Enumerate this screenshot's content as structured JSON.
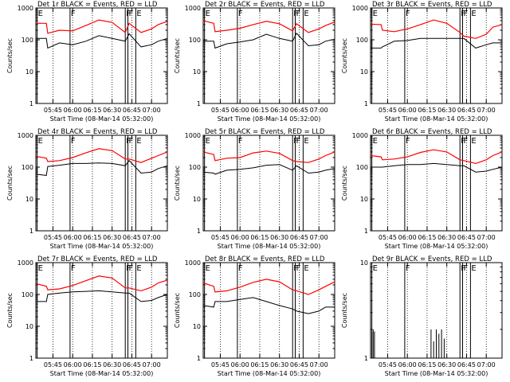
{
  "figure": {
    "xlabel": "Start Time (08-Mar-14 05:32:00)",
    "ylabel": "Counts/sec",
    "x_ticks": [
      "05:45",
      "06:00",
      "06:15",
      "06:30",
      "06:45",
      "07:00"
    ],
    "y_ticks": [
      "1000",
      "100",
      "10",
      "1"
    ],
    "markers": [
      {
        "label": "E",
        "x": "05:33"
      },
      {
        "label": "F",
        "x": "05:58"
      },
      {
        "label": "F",
        "x": "06:40"
      },
      {
        "label": "F",
        "x": "06:42"
      },
      {
        "label": "E",
        "x": "06:48"
      }
    ],
    "colors": {
      "events": "#000000",
      "lld": "#ff0000"
    }
  },
  "chart_data": [
    {
      "type": "line",
      "title": "Det 1r BLACK = Events, RED = LLD",
      "xlabel": "Start Time (08-Mar-14 05:32:00)",
      "ylabel": "Counts/sec",
      "y_scale": "log",
      "ylim": [
        1,
        1000
      ],
      "xlim": [
        "05:32",
        "07:12"
      ],
      "x": [
        "05:32",
        "05:40",
        "05:41",
        "05:50",
        "06:00",
        "06:10",
        "06:20",
        "06:30",
        "06:40",
        "06:43",
        "06:52",
        "07:00",
        "07:05",
        "07:12"
      ],
      "series": [
        {
          "name": "Events",
          "values": [
            110,
            110,
            55,
            80,
            70,
            90,
            135,
            110,
            90,
            155,
            60,
            70,
            90,
            110
          ]
        },
        {
          "name": "LLD",
          "values": [
            330,
            330,
            160,
            200,
            190,
            280,
            420,
            350,
            170,
            330,
            170,
            220,
            300,
            380
          ]
        }
      ]
    },
    {
      "type": "line",
      "title": "Det 2r BLACK = Events, RED = LLD",
      "xlabel": "Start Time (08-Mar-14 05:32:00)",
      "ylabel": "Counts/sec",
      "y_scale": "log",
      "ylim": [
        1,
        1000
      ],
      "xlim": [
        "05:32",
        "07:12"
      ],
      "x": [
        "05:32",
        "05:40",
        "05:41",
        "05:50",
        "06:00",
        "06:10",
        "06:20",
        "06:30",
        "06:40",
        "06:43",
        "06:52",
        "07:00",
        "07:05",
        "07:12"
      ],
      "series": [
        {
          "name": "Events",
          "values": [
            90,
            90,
            55,
            75,
            85,
            100,
            150,
            110,
            90,
            160,
            65,
            70,
            90,
            105
          ]
        },
        {
          "name": "LLD",
          "values": [
            400,
            330,
            180,
            200,
            230,
            300,
            380,
            320,
            190,
            320,
            170,
            220,
            280,
            360
          ]
        }
      ]
    },
    {
      "type": "line",
      "title": "Det 3r BLACK = Events, RED = LLD",
      "xlabel": "Start Time (08-Mar-14 05:32:00)",
      "ylabel": "Counts/sec",
      "y_scale": "log",
      "ylim": [
        1,
        1000
      ],
      "xlim": [
        "05:32",
        "07:12"
      ],
      "x": [
        "05:32",
        "05:40",
        "05:41",
        "05:50",
        "06:00",
        "06:10",
        "06:20",
        "06:30",
        "06:40",
        "06:43",
        "06:52",
        "07:00",
        "07:05",
        "07:12"
      ],
      "series": [
        {
          "name": "Events",
          "values": [
            55,
            55,
            60,
            90,
            95,
            110,
            110,
            110,
            110,
            110,
            55,
            70,
            80,
            80
          ]
        },
        {
          "name": "LLD",
          "values": [
            310,
            300,
            200,
            180,
            220,
            300,
            420,
            330,
            170,
            130,
            110,
            150,
            250,
            300
          ]
        }
      ]
    },
    {
      "type": "line",
      "title": "Det 4r BLACK = Events, RED = LLD",
      "xlabel": "Start Time (08-Mar-14 05:32:00)",
      "ylabel": "Counts/sec",
      "y_scale": "log",
      "ylim": [
        1,
        1000
      ],
      "xlim": [
        "05:32",
        "07:12"
      ],
      "x": [
        "05:32",
        "05:40",
        "05:41",
        "05:50",
        "06:00",
        "06:10",
        "06:20",
        "06:30",
        "06:40",
        "06:43",
        "06:52",
        "07:00",
        "07:05",
        "07:12"
      ],
      "series": [
        {
          "name": "Events",
          "values": [
            60,
            55,
            105,
            115,
            130,
            130,
            135,
            130,
            110,
            160,
            65,
            70,
            90,
            110
          ]
        },
        {
          "name": "LLD",
          "values": [
            220,
            190,
            150,
            160,
            200,
            280,
            380,
            330,
            180,
            180,
            140,
            190,
            230,
            300
          ]
        }
      ]
    },
    {
      "type": "line",
      "title": "Det 5r BLACK = Events, RED = LLD",
      "xlabel": "Start Time (08-Mar-14 05:32:00)",
      "ylabel": "Counts/sec",
      "y_scale": "log",
      "ylim": [
        1,
        1000
      ],
      "xlim": [
        "05:32",
        "07:12"
      ],
      "x": [
        "05:32",
        "05:40",
        "05:41",
        "05:50",
        "06:00",
        "06:10",
        "06:20",
        "06:30",
        "06:40",
        "06:43",
        "06:52",
        "07:00",
        "07:05",
        "07:12"
      ],
      "series": [
        {
          "name": "Events",
          "values": [
            70,
            65,
            60,
            80,
            85,
            95,
            115,
            120,
            80,
            110,
            65,
            70,
            80,
            90
          ]
        },
        {
          "name": "LLD",
          "values": [
            300,
            250,
            160,
            190,
            200,
            280,
            320,
            270,
            160,
            150,
            140,
            180,
            230,
            300
          ]
        }
      ]
    },
    {
      "type": "line",
      "title": "Det 6r BLACK = Events, RED = LLD",
      "xlabel": "Start Time (08-Mar-14 05:32:00)",
      "ylabel": "Counts/sec",
      "y_scale": "log",
      "ylim": [
        1,
        1000
      ],
      "xlim": [
        "05:32",
        "07:12"
      ],
      "x": [
        "05:32",
        "05:40",
        "05:41",
        "05:50",
        "06:00",
        "06:10",
        "06:20",
        "06:30",
        "06:40",
        "06:43",
        "06:52",
        "07:00",
        "07:05",
        "07:12"
      ],
      "series": [
        {
          "name": "Events",
          "values": [
            100,
            100,
            100,
            110,
            120,
            120,
            130,
            120,
            110,
            110,
            70,
            75,
            85,
            100
          ]
        },
        {
          "name": "LLD",
          "values": [
            230,
            210,
            170,
            180,
            210,
            290,
            350,
            300,
            170,
            160,
            130,
            170,
            230,
            300
          ]
        }
      ]
    },
    {
      "type": "line",
      "title": "Det 7r BLACK = Events, RED = LLD",
      "xlabel": "Start Time (08-Mar-14 05:32:00)",
      "ylabel": "Counts/sec",
      "y_scale": "log",
      "ylim": [
        1,
        1000
      ],
      "xlim": [
        "05:32",
        "07:12"
      ],
      "x": [
        "05:32",
        "05:40",
        "05:41",
        "05:50",
        "06:00",
        "06:10",
        "06:20",
        "06:30",
        "06:40",
        "06:43",
        "06:52",
        "07:00",
        "07:05",
        "07:12"
      ],
      "series": [
        {
          "name": "Events",
          "values": [
            60,
            60,
            100,
            110,
            120,
            125,
            130,
            120,
            110,
            110,
            60,
            65,
            80,
            100
          ]
        },
        {
          "name": "LLD",
          "values": [
            220,
            180,
            140,
            150,
            190,
            270,
            380,
            330,
            160,
            160,
            130,
            170,
            230,
            280
          ]
        }
      ]
    },
    {
      "type": "line",
      "title": "Det 8r BLACK = Events, RED = LLD",
      "xlabel": "Start Time (08-Mar-14 05:32:00)",
      "ylabel": "Counts/sec",
      "y_scale": "log",
      "ylim": [
        1,
        1000
      ],
      "xlim": [
        "05:32",
        "07:12"
      ],
      "x": [
        "05:32",
        "05:40",
        "05:41",
        "05:50",
        "06:00",
        "06:10",
        "06:20",
        "06:30",
        "06:40",
        "06:43",
        "06:52",
        "07:00",
        "07:05",
        "07:12"
      ],
      "series": [
        {
          "name": "Events",
          "values": [
            45,
            40,
            60,
            60,
            70,
            80,
            60,
            45,
            35,
            30,
            25,
            30,
            40,
            40
          ]
        },
        {
          "name": "LLD",
          "values": [
            230,
            180,
            120,
            130,
            170,
            240,
            300,
            250,
            140,
            130,
            100,
            140,
            180,
            250
          ]
        }
      ]
    },
    {
      "type": "line",
      "title": "Det 9r BLACK = Events, RED = LLD",
      "xlabel": "Start Time (08-Mar-14 05:32:00)",
      "ylabel": "Counts/sec",
      "y_scale": "log",
      "ylim": [
        1,
        10
      ],
      "xlim": [
        "05:32",
        "07:12"
      ],
      "x": [
        "05:33",
        "05:34",
        "05:35",
        "06:16",
        "06:18",
        "06:20",
        "06:22",
        "06:24",
        "06:26",
        "06:28"
      ],
      "series": [
        {
          "name": "Events",
          "values": [
            1.9,
            2,
            1.9,
            1,
            2,
            1.5,
            2,
            1.8,
            2,
            1.6
          ]
        }
      ]
    }
  ]
}
